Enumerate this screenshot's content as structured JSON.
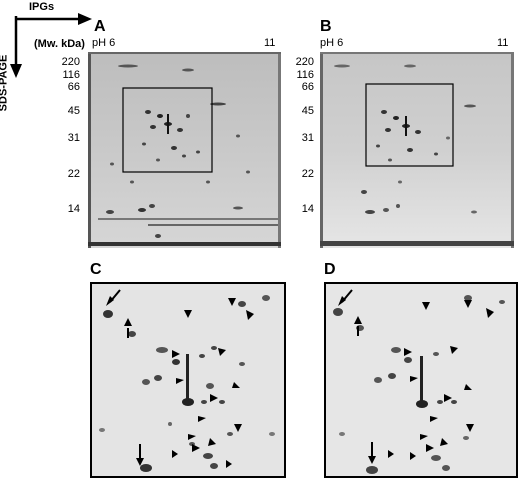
{
  "axes": {
    "ipg_label": "IPGs",
    "sds_label": "SDS-PAGE",
    "mw_unit": "(Mw. kDa)"
  },
  "panels": {
    "A": {
      "letter": "A",
      "ph_left": "pH 6",
      "ph_right": "11"
    },
    "B": {
      "letter": "B",
      "ph_left": "pH 6",
      "ph_right": "11"
    },
    "C": {
      "letter": "C"
    },
    "D": {
      "letter": "D"
    }
  },
  "mw_markers": [
    "220",
    "116",
    "66",
    "45",
    "31",
    "22",
    "14"
  ],
  "colors": {
    "gel_bg": "#c9c9c9",
    "spot": "#1a1a1a",
    "frame": "#000000"
  },
  "icons": [
    "arrow-right-icon",
    "arrow-down-icon",
    "arrowhead-icon",
    "arrow-icon"
  ]
}
